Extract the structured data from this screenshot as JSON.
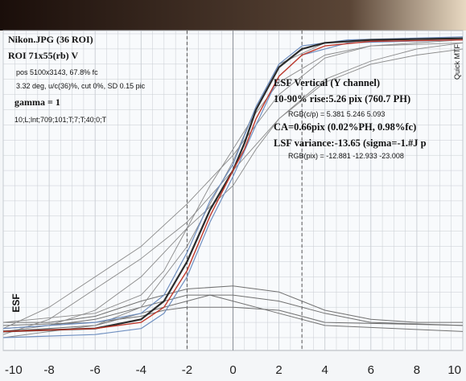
{
  "header": {
    "gradient_dark": "#1a0e0a",
    "gradient_light": "#e8d9c2"
  },
  "info_left": {
    "title": "Nikon.JPG (36 ROI)",
    "roi": "ROI 71x55(rb) V",
    "pos": "pos 5100x3143, 67.8% fc",
    "deg": "3.32 deg, u/c(36)%, cut 0%, SD 0.15 pic",
    "gamma": "gamma = 1",
    "params": "10;L;lnt;709;101;T;7;T;40;0;T"
  },
  "info_right": {
    "title": "ESF Vertical (Y channel)",
    "rise": "10-90% rise:5.26 pix (760.7 PH)",
    "rgb_cp": "RGB(c/p) = 5.381 5.246 5.093",
    "ca": "CA=0.66pix (0.02%PH, 0.98%fc)",
    "lsf": "LSF variance:-13.65 (sigma=-1.#J p",
    "rgb_pix": "RGB(pix) = -12.881 -12.933 -23.008"
  },
  "side_label": "Quick MTF",
  "chart_data": {
    "type": "line",
    "ylabel": "ESF",
    "xlim": [
      -10,
      10
    ],
    "x_ticks": [
      -10,
      -8,
      -6,
      -4,
      -2,
      0,
      2,
      4,
      6,
      8,
      10
    ],
    "grid": true,
    "dashed_verticals": [
      -2,
      3
    ],
    "colors": {
      "grid": "#c8ccd2",
      "red": "#c0392b",
      "dark": "#2b2b2b",
      "blue": "#6f8fc0",
      "gray": "#8a8a8a",
      "lsf": "#707070"
    },
    "series": [
      {
        "role": "red",
        "points": [
          [
            -10,
            0.02
          ],
          [
            -6,
            0.03
          ],
          [
            -4,
            0.05
          ],
          [
            -3,
            0.1
          ],
          [
            -2,
            0.22
          ],
          [
            -1,
            0.4
          ],
          [
            0,
            0.55
          ],
          [
            0.5,
            0.62
          ],
          [
            1,
            0.72
          ],
          [
            2,
            0.86
          ],
          [
            3,
            0.93
          ],
          [
            4,
            0.96
          ],
          [
            6,
            0.975
          ],
          [
            10,
            0.98
          ]
        ]
      },
      {
        "role": "dark",
        "points": [
          [
            -10,
            0.02
          ],
          [
            -6,
            0.03
          ],
          [
            -4,
            0.06
          ],
          [
            -3,
            0.12
          ],
          [
            -2,
            0.25
          ],
          [
            -1,
            0.42
          ],
          [
            0,
            0.55
          ],
          [
            0.5,
            0.64
          ],
          [
            1,
            0.75
          ],
          [
            2,
            0.89
          ],
          [
            3,
            0.95
          ],
          [
            4,
            0.97
          ],
          [
            6,
            0.98
          ],
          [
            10,
            0.985
          ]
        ]
      },
      {
        "role": "blue",
        "points": [
          [
            -10,
            0.0
          ],
          [
            -6,
            0.01
          ],
          [
            -4,
            0.03
          ],
          [
            -3,
            0.08
          ],
          [
            -2,
            0.2
          ],
          [
            -1,
            0.38
          ],
          [
            0,
            0.53
          ],
          [
            1,
            0.7
          ],
          [
            2,
            0.86
          ],
          [
            3,
            0.93
          ],
          [
            5,
            0.97
          ],
          [
            10,
            0.98
          ]
        ]
      },
      {
        "role": "blue",
        "points": [
          [
            -10,
            0.03
          ],
          [
            -6,
            0.05
          ],
          [
            -4,
            0.08
          ],
          [
            -3,
            0.14
          ],
          [
            -2,
            0.28
          ],
          [
            -1,
            0.45
          ],
          [
            0,
            0.57
          ],
          [
            1,
            0.76
          ],
          [
            2,
            0.9
          ],
          [
            3,
            0.96
          ],
          [
            5,
            0.98
          ],
          [
            10,
            0.99
          ]
        ]
      },
      {
        "role": "gray",
        "points": [
          [
            -10,
            0.01
          ],
          [
            -8,
            0.06
          ],
          [
            -6,
            0.16
          ],
          [
            -4,
            0.26
          ],
          [
            -2,
            0.38
          ],
          [
            0,
            0.55
          ],
          [
            2,
            0.72
          ],
          [
            4,
            0.85
          ],
          [
            6,
            0.91
          ],
          [
            8,
            0.95
          ],
          [
            10,
            0.97
          ]
        ]
      },
      {
        "role": "gray",
        "points": [
          [
            -10,
            0.03
          ],
          [
            -8,
            0.1
          ],
          [
            -6,
            0.2
          ],
          [
            -4,
            0.3
          ],
          [
            -2,
            0.44
          ],
          [
            0,
            0.6
          ],
          [
            2,
            0.8
          ],
          [
            4,
            0.92
          ],
          [
            6,
            0.96
          ],
          [
            10,
            0.98
          ]
        ]
      },
      {
        "role": "gray",
        "points": [
          [
            -10,
            0.02
          ],
          [
            -8,
            0.04
          ],
          [
            -6,
            0.09
          ],
          [
            -4,
            0.2
          ],
          [
            -2,
            0.36
          ],
          [
            0,
            0.5
          ],
          [
            1,
            0.62
          ],
          [
            2,
            0.72
          ],
          [
            4,
            0.84
          ],
          [
            6,
            0.9
          ],
          [
            8,
            0.93
          ],
          [
            10,
            0.95
          ]
        ]
      },
      {
        "role": "gray",
        "points": [
          [
            -10,
            0.0
          ],
          [
            -6,
            0.04
          ],
          [
            -4,
            0.1
          ],
          [
            -2,
            0.3
          ],
          [
            0,
            0.58
          ],
          [
            1,
            0.76
          ],
          [
            2,
            0.9
          ],
          [
            4,
            0.97
          ],
          [
            10,
            0.99
          ]
        ]
      },
      {
        "role": "gray",
        "points": [
          [
            -10,
            0.05
          ],
          [
            -6,
            0.08
          ],
          [
            -4,
            0.14
          ],
          [
            -3,
            0.22
          ],
          [
            -2,
            0.36
          ],
          [
            -1,
            0.5
          ],
          [
            0,
            0.62
          ],
          [
            1,
            0.74
          ],
          [
            2,
            0.84
          ],
          [
            4,
            0.93
          ],
          [
            6,
            0.96
          ],
          [
            10,
            0.97
          ]
        ]
      },
      {
        "role": "lsf",
        "points": [
          [
            -10,
            0.05
          ],
          [
            -8,
            0.05
          ],
          [
            -6,
            0.07
          ],
          [
            -4,
            0.12
          ],
          [
            -2,
            0.16
          ],
          [
            0,
            0.17
          ],
          [
            2,
            0.15
          ],
          [
            3,
            0.12
          ],
          [
            4,
            0.09
          ],
          [
            6,
            0.06
          ],
          [
            8,
            0.05
          ],
          [
            10,
            0.05
          ]
        ]
      },
      {
        "role": "lsf",
        "points": [
          [
            -10,
            0.03
          ],
          [
            -8,
            0.04
          ],
          [
            -6,
            0.06
          ],
          [
            -4,
            0.1
          ],
          [
            -2,
            0.14
          ],
          [
            0,
            0.14
          ],
          [
            2,
            0.12
          ],
          [
            4,
            0.08
          ],
          [
            6,
            0.05
          ],
          [
            10,
            0.04
          ]
        ]
      },
      {
        "role": "lsf",
        "points": [
          [
            -10,
            0.04
          ],
          [
            -6,
            0.05
          ],
          [
            -4,
            0.07
          ],
          [
            -3,
            0.09
          ],
          [
            -2,
            0.1
          ],
          [
            0,
            0.1
          ],
          [
            2,
            0.09
          ],
          [
            3,
            0.07
          ],
          [
            4,
            0.05
          ],
          [
            10,
            0.04
          ]
        ]
      },
      {
        "role": "lsf",
        "points": [
          [
            -10,
            0.02
          ],
          [
            -6,
            0.04
          ],
          [
            -4,
            0.08
          ],
          [
            -2,
            0.12
          ],
          [
            -1,
            0.14
          ],
          [
            0,
            0.12
          ],
          [
            1,
            0.1
          ],
          [
            2,
            0.08
          ],
          [
            4,
            0.04
          ],
          [
            10,
            0.02
          ]
        ]
      }
    ]
  }
}
